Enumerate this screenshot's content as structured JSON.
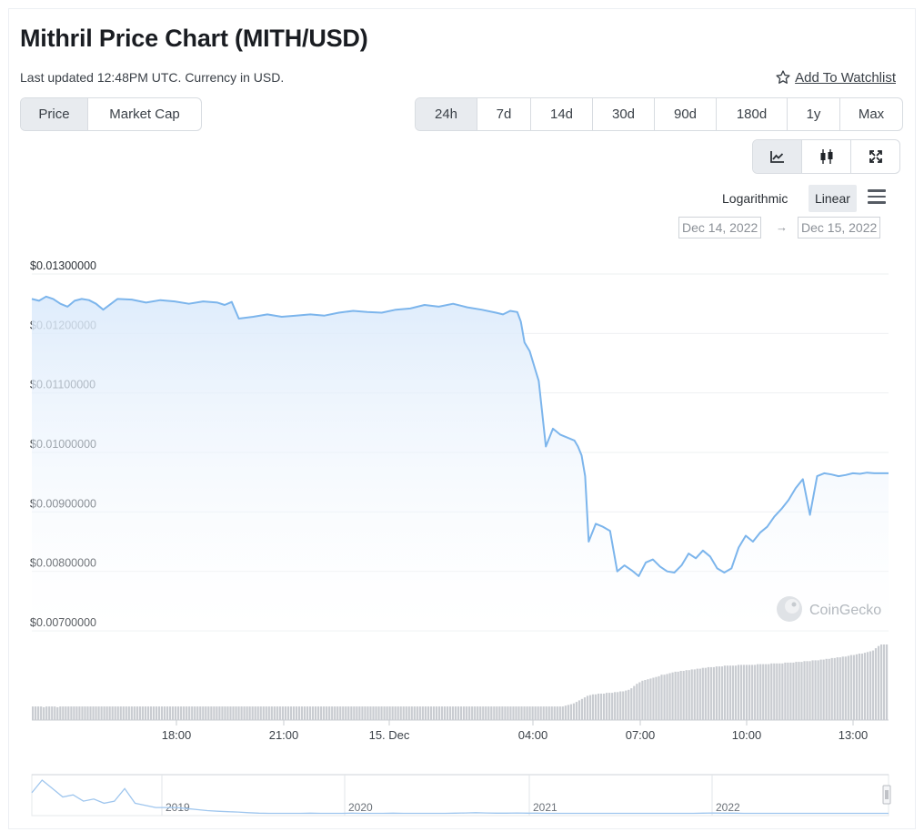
{
  "header": {
    "title": "Mithril Price Chart (MITH/USD)",
    "updated": "Last updated 12:48PM UTC. Currency in USD.",
    "watchlist_label": "Add To Watchlist"
  },
  "toggle": {
    "items": [
      "Price",
      "Market Cap"
    ],
    "active": "Price"
  },
  "ranges": {
    "items": [
      "24h",
      "7d",
      "14d",
      "30d",
      "90d",
      "180d",
      "1y",
      "Max"
    ],
    "active": "24h"
  },
  "modes": {
    "items": [
      "line-chart-icon",
      "candlestick-icon",
      "fullscreen-icon"
    ],
    "active": "line-chart-icon"
  },
  "scale": {
    "log_label": "Logarithmic",
    "linear_label": "Linear",
    "active": "Linear"
  },
  "dates": {
    "from": "Dec 14, 2022",
    "to": "Dec 15, 2022",
    "arrow": "→"
  },
  "watermark": "CoinGecko",
  "colors": {
    "line": "#7cb5ec",
    "area_top": "#dbeafb",
    "volume": "#c9ccd1",
    "navigator": "#9fc6ee"
  },
  "chart_data": {
    "type": "line",
    "title": "Mithril Price Chart (MITH/USD)",
    "ylabel": "",
    "xlabel": "",
    "ylim": [
      0.007,
      0.013
    ],
    "yticks": [
      "$0.01300000",
      "$0.01200000",
      "$0.01100000",
      "$0.01000000",
      "$0.00900000",
      "$0.00800000",
      "$0.00700000"
    ],
    "xticks": [
      "18:00",
      "21:00",
      "15. Dec",
      "04:00",
      "07:00",
      "10:00",
      "13:00"
    ],
    "x_hours": [
      0,
      0.2,
      0.4,
      0.6,
      0.8,
      1.0,
      1.2,
      1.4,
      1.6,
      1.8,
      2.0,
      2.4,
      2.8,
      3.2,
      3.6,
      4.0,
      4.4,
      4.8,
      5.2,
      5.4,
      5.6,
      5.8,
      6.2,
      6.6,
      7.0,
      7.4,
      7.8,
      8.2,
      8.6,
      9.0,
      9.4,
      9.8,
      10.2,
      10.6,
      11.0,
      11.4,
      11.8,
      12.2,
      12.6,
      13.0,
      13.2,
      13.4,
      13.6,
      13.7,
      13.8,
      13.95,
      14.1,
      14.2,
      14.4,
      14.6,
      14.8,
      15.0,
      15.2,
      15.3,
      15.4,
      15.5,
      15.6,
      15.8,
      16.0,
      16.2,
      16.4,
      16.6,
      16.8,
      17.0,
      17.2,
      17.4,
      17.6,
      17.8,
      18.0,
      18.2,
      18.4,
      18.6,
      18.8,
      19.0,
      19.2,
      19.4,
      19.6,
      19.8,
      20.0,
      20.2,
      20.4,
      20.6,
      20.8,
      21.0,
      21.2,
      21.4,
      21.6,
      21.8,
      22.0,
      22.2,
      22.4,
      22.6,
      22.8,
      23.0,
      23.2,
      23.4,
      23.6,
      23.8,
      24.0
    ],
    "values": [
      0.01258,
      0.01255,
      0.01262,
      0.01258,
      0.0125,
      0.01245,
      0.01255,
      0.01258,
      0.01256,
      0.0125,
      0.0124,
      0.01258,
      0.01257,
      0.01252,
      0.01256,
      0.01254,
      0.0125,
      0.01254,
      0.01252,
      0.01248,
      0.01253,
      0.01225,
      0.01228,
      0.01232,
      0.01228,
      0.0123,
      0.01232,
      0.0123,
      0.01235,
      0.01238,
      0.01236,
      0.01235,
      0.0124,
      0.01242,
      0.01248,
      0.01245,
      0.0125,
      0.01244,
      0.0124,
      0.01235,
      0.01232,
      0.01238,
      0.01236,
      0.0122,
      0.01185,
      0.0117,
      0.0114,
      0.0112,
      0.0101,
      0.0104,
      0.0103,
      0.01025,
      0.0102,
      0.0101,
      0.00995,
      0.0096,
      0.0085,
      0.0088,
      0.00875,
      0.00868,
      0.008,
      0.0081,
      0.00802,
      0.00792,
      0.00815,
      0.0082,
      0.00808,
      0.008,
      0.00798,
      0.0081,
      0.0083,
      0.00822,
      0.00835,
      0.00825,
      0.00805,
      0.00798,
      0.00805,
      0.0084,
      0.0086,
      0.0085,
      0.00865,
      0.00875,
      0.00892,
      0.00905,
      0.0092,
      0.0094,
      0.00955,
      0.00895,
      0.0096,
      0.00965,
      0.00963,
      0.0096,
      0.00962,
      0.00965,
      0.00964,
      0.00966,
      0.00965,
      0.00965,
      0.00965
    ],
    "volume_relative": [
      0.18,
      0.18,
      0.18,
      0.18,
      0.17,
      0.18,
      0.18,
      0.18,
      0.18,
      0.17,
      0.18,
      0.18,
      0.18,
      0.18,
      0.18,
      0.18,
      0.18,
      0.18,
      0.18,
      0.18,
      0.18,
      0.18,
      0.18,
      0.18,
      0.18,
      0.18,
      0.18,
      0.18,
      0.18,
      0.18,
      0.18,
      0.18,
      0.18,
      0.18,
      0.18,
      0.18,
      0.18,
      0.18,
      0.18,
      0.18,
      0.18,
      0.18,
      0.18,
      0.18,
      0.18,
      0.18,
      0.18,
      0.18,
      0.18,
      0.18,
      0.18,
      0.18,
      0.18,
      0.18,
      0.18,
      0.18,
      0.18,
      0.18,
      0.18,
      0.18,
      0.18,
      0.18,
      0.18,
      0.18,
      0.18,
      0.18,
      0.18,
      0.18,
      0.18,
      0.18,
      0.18,
      0.18,
      0.18,
      0.18,
      0.18,
      0.18,
      0.18,
      0.18,
      0.18,
      0.18,
      0.18,
      0.18,
      0.18,
      0.18,
      0.18,
      0.18,
      0.18,
      0.18,
      0.18,
      0.18,
      0.18,
      0.18,
      0.18,
      0.18,
      0.18,
      0.18,
      0.18,
      0.18,
      0.18,
      0.18,
      0.18,
      0.18,
      0.18,
      0.18,
      0.18,
      0.18,
      0.18,
      0.18,
      0.18,
      0.18,
      0.18,
      0.18,
      0.18,
      0.18,
      0.18,
      0.18,
      0.18,
      0.18,
      0.18,
      0.18,
      0.18,
      0.18,
      0.18,
      0.18,
      0.18,
      0.18,
      0.18,
      0.18,
      0.18,
      0.18,
      0.18,
      0.18,
      0.18,
      0.18,
      0.18,
      0.18,
      0.18,
      0.18,
      0.18,
      0.18,
      0.18,
      0.18,
      0.18,
      0.18,
      0.18,
      0.18,
      0.18,
      0.18,
      0.18,
      0.18,
      0.18,
      0.18,
      0.18,
      0.18,
      0.18,
      0.18,
      0.18,
      0.18,
      0.18,
      0.18,
      0.18,
      0.18,
      0.18,
      0.18,
      0.18,
      0.18,
      0.18,
      0.18,
      0.18,
      0.18,
      0.18,
      0.18,
      0.18,
      0.18,
      0.18,
      0.18,
      0.18,
      0.18,
      0.18,
      0.18,
      0.18,
      0.18,
      0.18,
      0.18,
      0.18,
      0.18,
      0.18,
      0.18,
      0.18,
      0.18,
      0.18,
      0.18,
      0.18,
      0.18,
      0.19,
      0.2,
      0.21,
      0.22,
      0.24,
      0.26,
      0.28,
      0.3,
      0.32,
      0.33,
      0.34,
      0.34,
      0.35,
      0.35,
      0.35,
      0.36,
      0.36,
      0.36,
      0.37,
      0.37,
      0.38,
      0.38,
      0.39,
      0.4,
      0.42,
      0.45,
      0.48,
      0.5,
      0.52,
      0.53,
      0.54,
      0.55,
      0.56,
      0.57,
      0.58,
      0.6,
      0.6,
      0.61,
      0.62,
      0.63,
      0.64,
      0.64,
      0.65,
      0.65,
      0.66,
      0.66,
      0.67,
      0.67,
      0.68,
      0.68,
      0.69,
      0.69,
      0.7,
      0.7,
      0.7,
      0.71,
      0.71,
      0.71,
      0.72,
      0.72,
      0.72,
      0.72,
      0.72,
      0.73,
      0.73,
      0.73,
      0.73,
      0.73,
      0.73,
      0.73,
      0.74,
      0.74,
      0.74,
      0.74,
      0.74,
      0.75,
      0.75,
      0.75,
      0.75,
      0.75,
      0.76,
      0.76,
      0.76,
      0.76,
      0.77,
      0.77,
      0.77,
      0.78,
      0.78,
      0.78,
      0.79,
      0.79,
      0.79,
      0.8,
      0.8,
      0.81,
      0.81,
      0.82,
      0.82,
      0.83,
      0.83,
      0.84,
      0.84,
      0.85,
      0.86,
      0.86,
      0.87,
      0.88,
      0.88,
      0.89,
      0.9,
      0.91,
      0.92,
      0.95,
      0.98,
      1.0,
      1.0,
      1.0
    ],
    "navigator": {
      "labels": [
        "2019",
        "2020",
        "2021",
        "2022"
      ],
      "values": [
        0.1,
        0.16,
        0.12,
        0.08,
        0.09,
        0.06,
        0.07,
        0.05,
        0.06,
        0.12,
        0.05,
        0.04,
        0.03,
        0.03,
        0.03,
        0.025,
        0.02,
        0.015,
        0.012,
        0.01,
        0.008,
        0.005,
        0.003,
        0.002,
        0.002,
        0.002,
        0.002,
        0.003,
        0.002,
        0.002,
        0.002,
        0.003,
        0.002,
        0.002,
        0.002,
        0.003,
        0.002,
        0.002,
        0.002,
        0.002,
        0.002,
        0.003,
        0.004,
        0.005,
        0.004,
        0.003,
        0.003,
        0.004,
        0.003,
        0.003,
        0.002,
        0.002,
        0.002,
        0.002,
        0.002,
        0.002,
        0.002,
        0.002,
        0.002,
        0.002,
        0.002,
        0.002,
        0.002,
        0.002,
        0.002,
        0.003,
        0.004,
        0.003,
        0.003,
        0.002,
        0.002,
        0.002,
        0.002,
        0.002,
        0.002,
        0.002,
        0.002,
        0.002,
        0.002,
        0.002,
        0.002,
        0.002,
        0.002,
        0.002
      ]
    }
  }
}
